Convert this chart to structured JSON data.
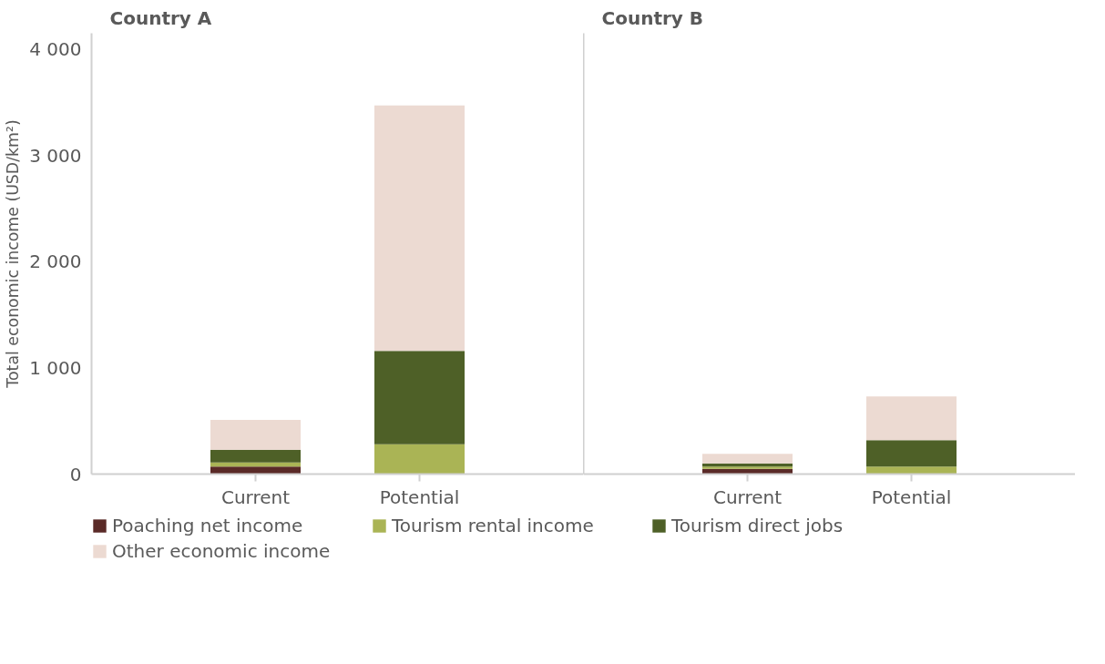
{
  "chart_data": [
    {
      "type": "bar",
      "title": "Country A",
      "ylabel": "Total economic income (USD/km²)",
      "categories": [
        "Current",
        "Potential"
      ],
      "stacked": true,
      "ylim": [
        0,
        4150
      ],
      "yticks": [
        0,
        {
          "value": 1000,
          "label": "1 000"
        },
        {
          "value": 2000,
          "label": "2 000"
        },
        {
          "value": 3000,
          "label": "3 000"
        },
        {
          "value": 4000,
          "label": "4 000"
        }
      ],
      "grid": false,
      "legend": "bottom",
      "series": [
        {
          "name": "Poaching net income",
          "color": "#5a2a27",
          "values": [
            70,
            0
          ]
        },
        {
          "name": "Tourism rental income",
          "color": "#aab455",
          "values": [
            40,
            280
          ]
        },
        {
          "name": "Tourism direct jobs",
          "color": "#4e6027",
          "values": [
            120,
            880
          ]
        },
        {
          "name": "Other economic income",
          "color": "#ecdad2",
          "values": [
            280,
            2310
          ]
        }
      ]
    },
    {
      "type": "bar",
      "title": "Country B",
      "categories": [
        "Current",
        "Potential"
      ],
      "stacked": true,
      "ylim": [
        0,
        4150
      ],
      "grid": false,
      "tick_labels": "x",
      "series": [
        {
          "color": "#5a2a27",
          "values": [
            50,
            0
          ]
        },
        {
          "color": "#aab455",
          "values": [
            20,
            70
          ]
        },
        {
          "color": "#4e6027",
          "values": [
            30,
            250
          ]
        },
        {
          "color": "#ecdad2",
          "values": [
            90,
            410
          ]
        }
      ]
    }
  ]
}
